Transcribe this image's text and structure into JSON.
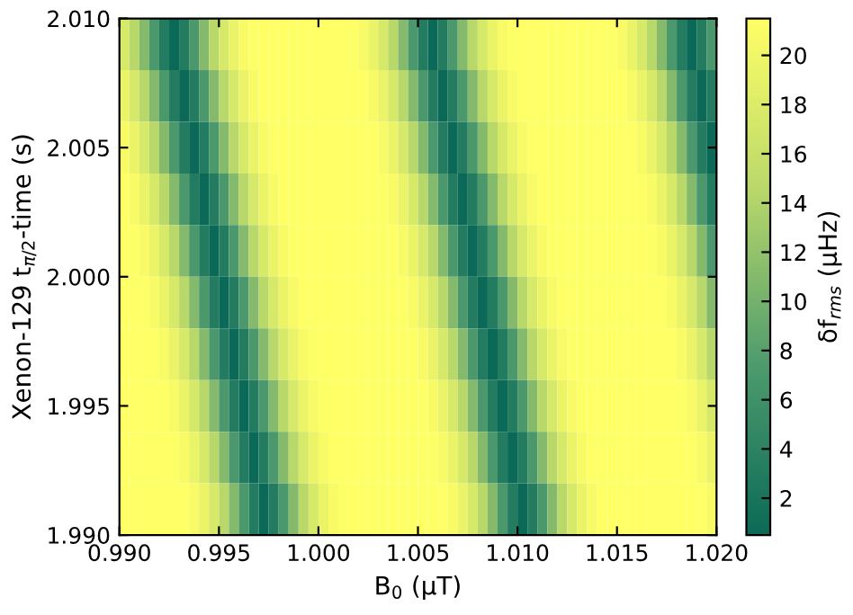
{
  "chart_data": {
    "type": "heatmap",
    "xlabel": "B$_{0}$ (μT)",
    "ylabel": "Xenon-129 t$_{π/2}$-time (s)",
    "clabel": "δf$_{rms}$ (μHz)",
    "x": [
      0.99025,
      0.99075,
      0.99125,
      0.99175,
      0.99225,
      0.99275,
      0.99325,
      0.99375,
      0.99425,
      0.99475,
      0.99525,
      0.99575,
      0.99625,
      0.99675,
      0.99725,
      0.99775,
      0.99825,
      0.99875,
      0.99925,
      0.99975,
      1.00025,
      1.00075,
      1.00125,
      1.00175,
      1.00225,
      1.00275,
      1.00325,
      1.00375,
      1.00425,
      1.00475,
      1.00525,
      1.00575,
      1.00625,
      1.00675,
      1.00725,
      1.00775,
      1.00825,
      1.00875,
      1.00925,
      1.00975,
      1.01025,
      1.01075,
      1.01125,
      1.01175,
      1.01225,
      1.01275,
      1.01325,
      1.01375,
      1.01425,
      1.01475,
      1.01525,
      1.01575,
      1.01625,
      1.01675,
      1.01725,
      1.01775,
      1.01825,
      1.01875,
      1.01925,
      1.01975
    ],
    "y": [
      2.009,
      2.007,
      2.005,
      2.003,
      2.001,
      1.999,
      1.997,
      1.995,
      1.993,
      1.991
    ],
    "cells": [
      [
        17.5,
        14.5,
        11,
        7,
        3,
        0.5,
        3,
        7,
        11,
        14.5,
        17.5,
        19.5,
        20.8,
        21.5,
        21.5,
        21.5,
        21.5,
        21.5,
        21.5,
        21.5,
        21.5,
        21.5,
        21.5,
        21.5,
        20.8,
        19.5,
        17.5,
        14.5,
        11,
        7,
        3,
        0.5,
        3,
        7,
        11,
        14.5,
        17.5,
        19.5,
        20.8,
        21.5,
        21.5,
        21.5,
        21.5,
        21.5,
        21.5,
        21.5,
        21.5,
        21.5,
        21.5,
        21.5,
        20.8,
        19.5,
        17.5,
        14.5,
        11,
        7,
        3,
        0.5,
        3,
        7
      ],
      [
        19.5,
        17.5,
        14.5,
        11,
        7,
        3,
        0.5,
        3,
        7,
        11,
        14.5,
        17.5,
        19.5,
        20.8,
        21.5,
        21.5,
        21.5,
        21.5,
        21.5,
        21.5,
        21.5,
        21.5,
        21.5,
        21.5,
        21.5,
        20.8,
        19.5,
        17.5,
        14.5,
        11,
        7,
        3,
        0.5,
        3,
        7,
        11,
        14.5,
        17.5,
        19.5,
        20.8,
        21.5,
        21.5,
        21.5,
        21.5,
        21.5,
        21.5,
        21.5,
        21.5,
        21.5,
        21.5,
        21.5,
        20.8,
        19.5,
        17.5,
        14.5,
        11,
        7,
        3,
        0.5,
        3
      ],
      [
        20.8,
        19.5,
        17.5,
        14.5,
        11,
        7,
        3,
        0.5,
        3,
        7,
        11,
        14.5,
        17.5,
        19.5,
        20.8,
        21.5,
        21.5,
        21.5,
        21.5,
        21.5,
        21.5,
        21.5,
        21.5,
        21.5,
        21.5,
        21.5,
        20.8,
        19.5,
        17.5,
        14.5,
        11,
        7,
        3,
        0.5,
        3,
        7,
        11,
        14.5,
        17.5,
        19.5,
        20.8,
        21.5,
        21.5,
        21.5,
        21.5,
        21.5,
        21.5,
        21.5,
        21.5,
        21.5,
        21.5,
        21.5,
        20.8,
        19.5,
        17.5,
        14.5,
        11,
        7,
        3,
        0.5
      ],
      [
        21.5,
        20.8,
        19.5,
        17.5,
        14.5,
        11,
        7,
        3,
        0.5,
        3,
        7,
        11,
        14.5,
        17.5,
        19.5,
        20.8,
        21.5,
        21.5,
        21.5,
        21.5,
        21.5,
        21.5,
        21.5,
        21.5,
        21.5,
        21.5,
        21.5,
        20.8,
        19.5,
        17.5,
        14.5,
        11,
        7,
        3,
        0.5,
        3,
        7,
        11,
        14.5,
        17.5,
        19.5,
        20.8,
        21.5,
        21.5,
        21.5,
        21.5,
        21.5,
        21.5,
        21.5,
        21.5,
        21.5,
        21.5,
        21.5,
        20.8,
        19.5,
        17.5,
        14.5,
        11,
        7,
        3
      ],
      [
        21.5,
        21.5,
        20.8,
        19.5,
        17.5,
        14.5,
        11,
        7,
        3,
        0.5,
        3,
        7,
        11,
        14.5,
        17.5,
        19.5,
        20.8,
        21.5,
        21.5,
        21.5,
        21.5,
        21.5,
        21.5,
        21.5,
        21.5,
        21.5,
        21.5,
        21.5,
        20.8,
        19.5,
        17.5,
        14.5,
        11,
        7,
        3,
        0.5,
        3,
        7,
        11,
        14.5,
        17.5,
        19.5,
        20.8,
        21.5,
        21.5,
        21.5,
        21.5,
        21.5,
        21.5,
        21.5,
        21.5,
        21.5,
        21.5,
        21.5,
        20.8,
        19.5,
        17.5,
        14.5,
        11,
        7
      ],
      [
        21.5,
        21.5,
        21.5,
        20.8,
        19.5,
        17.5,
        14.5,
        11,
        7,
        3,
        0.5,
        3,
        7,
        11,
        14.5,
        17.5,
        19.5,
        20.8,
        21.5,
        21.5,
        21.5,
        21.5,
        21.5,
        21.5,
        21.5,
        21.5,
        21.5,
        21.5,
        21.5,
        20.8,
        19.5,
        17.5,
        14.5,
        11,
        7,
        3,
        0.5,
        3,
        7,
        11,
        14.5,
        17.5,
        19.5,
        20.8,
        21.5,
        21.5,
        21.5,
        21.5,
        21.5,
        21.5,
        21.5,
        21.5,
        21.5,
        21.5,
        21.5,
        20.8,
        19.5,
        17.5,
        14.5,
        11
      ],
      [
        21.5,
        21.5,
        21.5,
        21.5,
        20.8,
        19.5,
        17.5,
        14.5,
        11,
        7,
        3,
        0.5,
        3,
        7,
        11,
        14.5,
        17.5,
        19.5,
        20.8,
        21.5,
        21.5,
        21.5,
        21.5,
        21.5,
        21.5,
        21.5,
        21.5,
        21.5,
        21.5,
        21.5,
        20.8,
        19.5,
        17.5,
        14.5,
        11,
        7,
        3,
        0.5,
        3,
        7,
        11,
        14.5,
        17.5,
        19.5,
        20.8,
        21.5,
        21.5,
        21.5,
        21.5,
        21.5,
        21.5,
        21.5,
        21.5,
        21.5,
        21.5,
        21.5,
        20.8,
        19.5,
        17.5,
        14.5
      ],
      [
        21.5,
        21.5,
        21.5,
        21.5,
        21.5,
        20.8,
        19.5,
        17.5,
        14.5,
        11,
        7,
        3,
        0.5,
        3,
        7,
        11,
        14.5,
        17.5,
        19.5,
        20.8,
        21.5,
        21.5,
        21.5,
        21.5,
        21.5,
        21.5,
        21.5,
        21.5,
        21.5,
        21.5,
        21.5,
        20.8,
        19.5,
        17.5,
        14.5,
        11,
        7,
        3,
        0.5,
        3,
        7,
        11,
        14.5,
        17.5,
        19.5,
        20.8,
        21.5,
        21.5,
        21.5,
        21.5,
        21.5,
        21.5,
        21.5,
        21.5,
        21.5,
        21.5,
        21.5,
        20.8,
        19.5,
        17.5
      ],
      [
        21.5,
        21.5,
        21.5,
        21.5,
        21.5,
        21.5,
        20.8,
        19.5,
        17.5,
        14.5,
        11,
        7,
        3,
        0.5,
        3,
        7,
        11,
        14.5,
        17.5,
        19.5,
        20.8,
        21.5,
        21.5,
        21.5,
        21.5,
        21.5,
        21.5,
        21.5,
        21.5,
        21.5,
        21.5,
        21.5,
        20.8,
        19.5,
        17.5,
        14.5,
        11,
        7,
        3,
        0.5,
        3,
        7,
        11,
        14.5,
        17.5,
        19.5,
        20.8,
        21.5,
        21.5,
        21.5,
        21.5,
        21.5,
        21.5,
        21.5,
        21.5,
        21.5,
        21.5,
        21.5,
        20.8,
        19.5
      ],
      [
        21.5,
        21.5,
        21.5,
        21.5,
        21.5,
        21.5,
        21.5,
        20.8,
        19.5,
        17.5,
        14.5,
        11,
        7,
        3,
        0.5,
        3,
        7,
        11,
        14.5,
        17.5,
        19.5,
        20.8,
        21.5,
        21.5,
        21.5,
        21.5,
        21.5,
        21.5,
        21.5,
        21.5,
        21.5,
        21.5,
        21.5,
        20.8,
        19.5,
        17.5,
        14.5,
        11,
        7,
        3,
        0.5,
        3,
        7,
        11,
        14.5,
        17.5,
        19.5,
        20.8,
        21.5,
        21.5,
        21.5,
        21.5,
        21.5,
        21.5,
        21.5,
        21.5,
        21.5,
        21.5,
        21.5,
        20.8
      ]
    ],
    "xlim": [
      0.99,
      1.02
    ],
    "xticks": [
      {
        "value": 0.99,
        "label": "0.990"
      },
      0.995,
      {
        "value": 1.0,
        "label": "1.000"
      },
      1.005,
      {
        "value": 1.01,
        "label": "1.010"
      },
      1.015,
      {
        "value": 1.02,
        "label": "1.020"
      }
    ],
    "ylim": [
      1.99,
      2.01
    ],
    "yticks": [
      {
        "value": 1.99,
        "label": "1.990"
      },
      1.995,
      {
        "value": 2.0,
        "label": "2.000"
      },
      2.005,
      {
        "value": 2.01,
        "label": "2.010"
      }
    ],
    "clim": [
      0.5,
      21.5
    ],
    "cticks": [
      2,
      4,
      6,
      8,
      10,
      12,
      14,
      16,
      18,
      20
    ]
  }
}
